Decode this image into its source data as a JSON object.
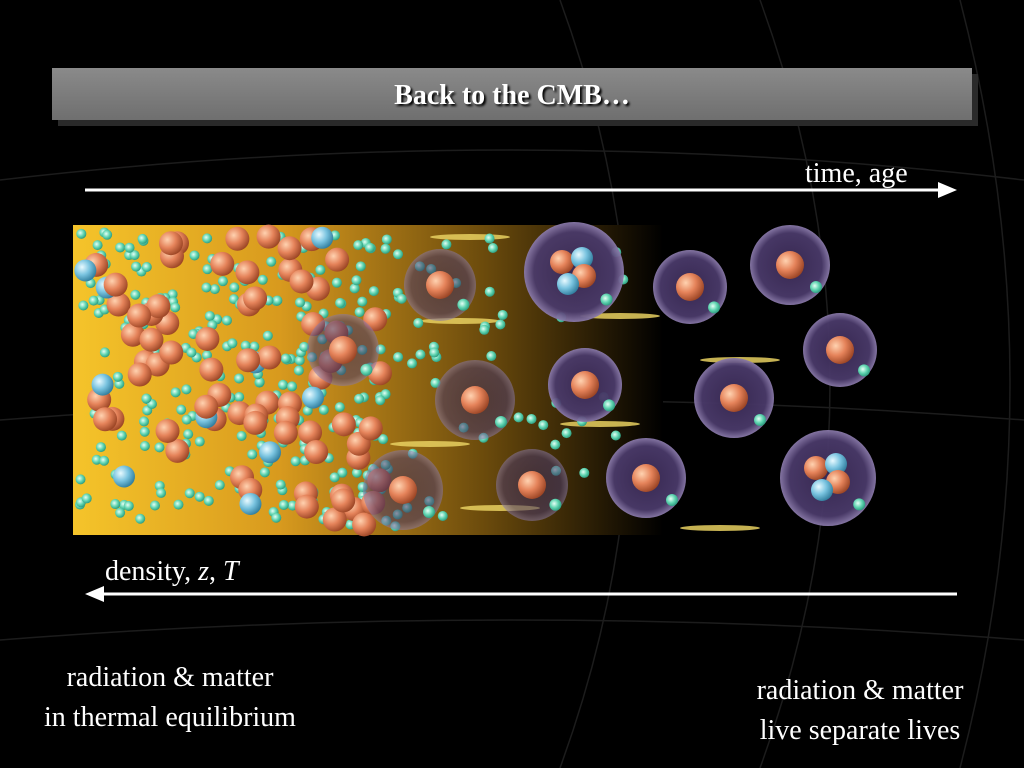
{
  "title": "Back to the CMB…",
  "time_label": "time, age",
  "density_label": [
    "density, ",
    "z",
    ", ",
    "T"
  ],
  "left_caption": [
    "radiation & matter",
    "in thermal equilibrium"
  ],
  "right_caption": [
    "radiation & matter",
    "live separate lives"
  ]
}
